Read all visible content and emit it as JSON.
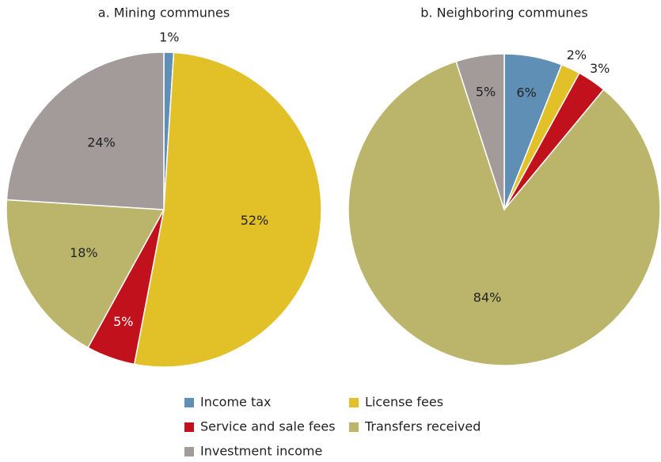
{
  "chart_data": [
    {
      "type": "pie",
      "title": "a. Mining communes",
      "categories": [
        "Income tax",
        "License fees",
        "Service and sale fees",
        "Transfers received",
        "Investment income"
      ],
      "values": [
        1,
        52,
        5,
        18,
        24
      ],
      "value_labels": [
        "1%",
        "52%",
        "5%",
        "18%",
        "24%"
      ],
      "colors": [
        "#5f8fb4",
        "#e2c027",
        "#c0111d",
        "#bbb56b",
        "#a39a9a"
      ]
    },
    {
      "type": "pie",
      "title": "b. Neighboring communes",
      "categories": [
        "Income tax",
        "License fees",
        "Service and sale fees",
        "Transfers received",
        "Investment income"
      ],
      "values": [
        6,
        2,
        3,
        84,
        5
      ],
      "value_labels": [
        "6%",
        "2%",
        "3%",
        "84%",
        "5%"
      ],
      "colors": [
        "#5f8fb4",
        "#e2c027",
        "#c0111d",
        "#bbb56b",
        "#a39a9a"
      ]
    }
  ]
}
